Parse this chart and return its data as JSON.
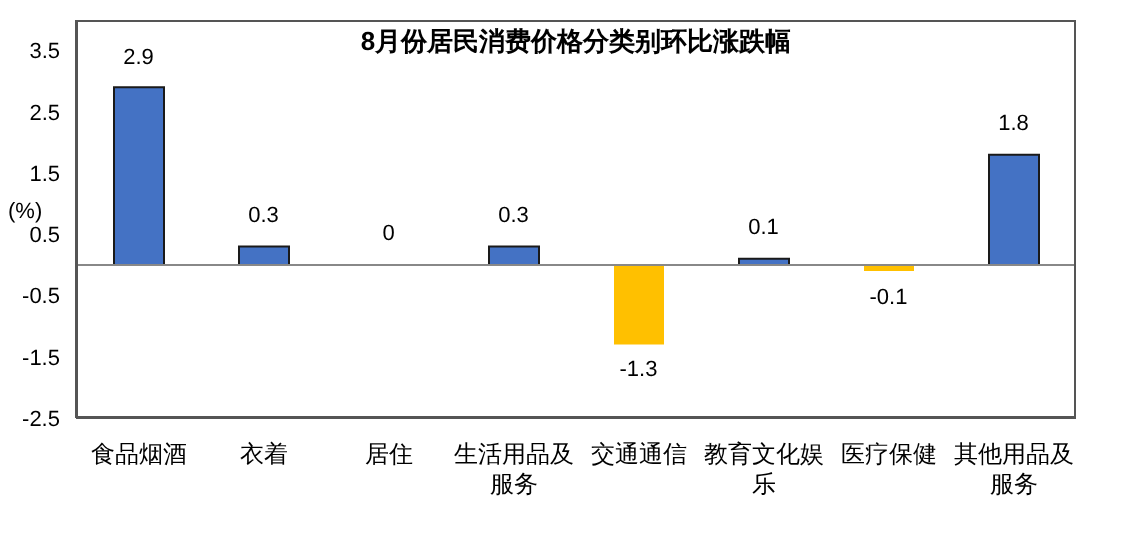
{
  "chart_data": {
    "type": "bar",
    "title": "8月份居民消费价格分类别环比涨跌幅",
    "ylabel": "(%)",
    "categories": [
      "食品烟酒",
      "衣着",
      "居住",
      "生活用品及服务",
      "交通通信",
      "教育文化娱乐",
      "医疗保健",
      "其他用品及服务"
    ],
    "values": [
      2.9,
      0.3,
      0,
      0.3,
      -1.3,
      0.1,
      -0.1,
      1.8
    ],
    "colors": [
      "#4472c4",
      "#4472c4",
      "#4472c4",
      "#4472c4",
      "#ffc000",
      "#4472c4",
      "#ffc000",
      "#4472c4"
    ],
    "ylim": [
      -2.5,
      4
    ],
    "yticks": [
      -2.5,
      -1.5,
      -0.5,
      0.5,
      1.5,
      2.5,
      3.5
    ],
    "data_labels": true,
    "grid": false,
    "legend": false
  }
}
